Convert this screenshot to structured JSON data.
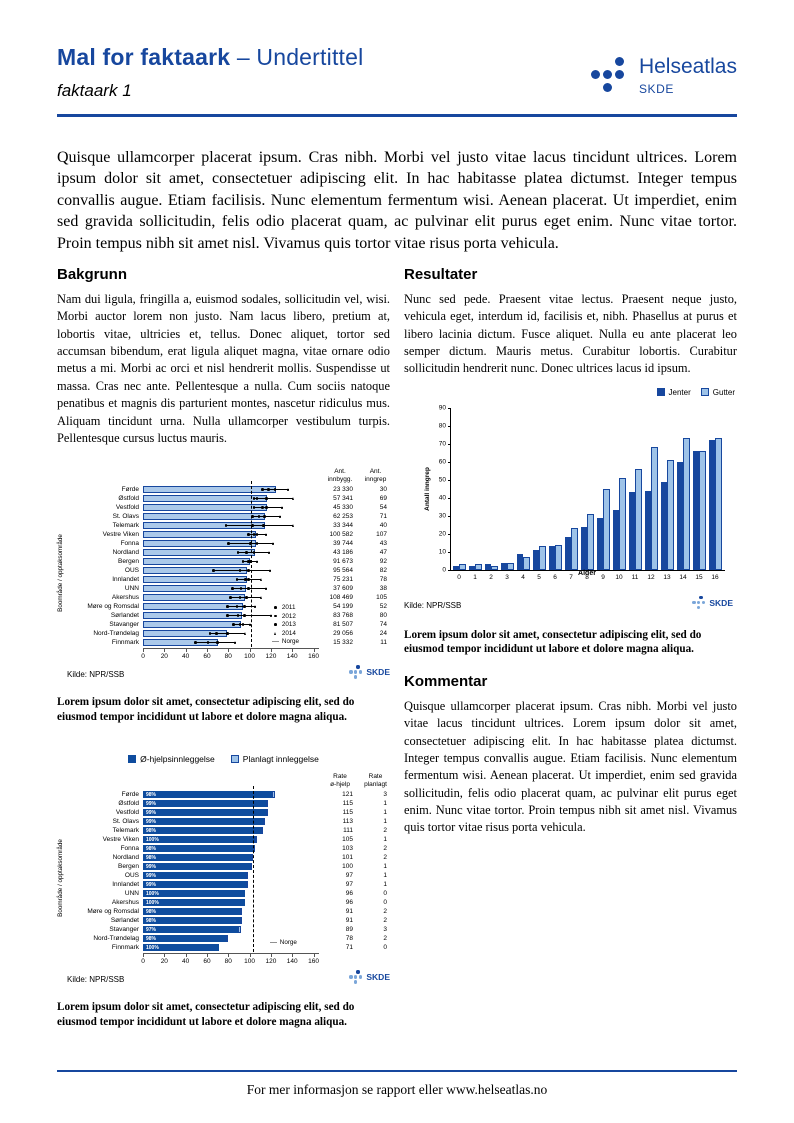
{
  "header": {
    "title_bold": "Mal for faktaark",
    "title_rest": "– Undertittel",
    "doc_label": "faktaark 1",
    "logo_name": "Helseatlas",
    "logo_org": "SKDE"
  },
  "brand": {
    "skde": "SKDE"
  },
  "colors": {
    "accent": "#17479e",
    "bar_light": "#abc9ea",
    "bar_dark": "#0e4c9e",
    "gutter_light": "#9ec3e8"
  },
  "intro": "Quisque ullamcorper placerat ipsum. Cras nibh. Morbi vel justo vitae lacus tincidunt ultrices. Lorem ipsum dolor sit amet, consectetuer adipiscing elit. In hac habitasse platea dictumst. Integer tempus convallis augue. Etiam facilisis. Nunc elementum fermentum wisi. Aenean placerat. Ut imperdiet, enim sed gravida sollicitudin, felis odio placerat quam, ac pulvinar elit purus eget enim. Nunc vitae tortor. Proin tempus nibh sit amet nisl. Vivamus quis tortor vitae risus porta vehicula.",
  "sections": {
    "bakgrunn": {
      "heading": "Bakgrunn",
      "body": "Nam dui ligula, fringilla a, euismod sodales, sollicitudin vel, wisi. Morbi auctor lorem non justo. Nam lacus libero, pretium at, lobortis vitae, ultricies et, tellus. Donec aliquet, tortor sed accumsan bibendum, erat ligula aliquet magna, vitae ornare odio metus a mi. Morbi ac orci et nisl hendrerit mollis. Suspendisse ut massa. Cras nec ante. Pellentesque a nulla. Cum sociis natoque penatibus et magnis dis parturient montes, nascetur ridiculus mus. Aliquam tincidunt urna. Nulla ullamcorper vestibulum turpis. Pellentesque cursus luctus mauris."
    },
    "resultater": {
      "heading": "Resultater",
      "body": "Nunc sed pede. Praesent vitae lectus. Praesent neque justo, vehicula eget, interdum id, facilisis et, nibh. Phasellus at purus et libero lacinia dictum. Fusce aliquet. Nulla eu ante placerat leo semper dictum. Mauris metus. Curabitur lobortis. Curabitur sollicitudin hendrerit nunc. Donec ultrices lacus id ipsum."
    },
    "kommentar": {
      "heading": "Kommentar",
      "body": "Quisque ullamcorper placerat ipsum. Cras nibh. Morbi vel justo vitae lacus tincidunt ultrices. Lorem ipsum dolor sit amet, consectetuer adipiscing elit. In hac habitasse platea dictumst. Integer tempus convallis augue. Etiam facilisis. Nunc elementum fermentum wisi. Aenean placerat. Ut imperdiet, enim sed gravida sollicitudin, felis odio placerat quam, ac pulvinar elit purus eget enim. Nunc vitae tortor. Proin tempus nibh sit amet nisl. Vivamus quis tortor vitae risus porta vehicula."
    }
  },
  "captions": {
    "chart1": "Lorem ipsum dolor sit amet, consectetur adipiscing elit, sed do eiusmod tempor incididunt ut labore et dolore magna aliqua.",
    "chart2": "Lorem ipsum dolor sit amet, consectetur adipiscing elit, sed do eiusmod tempor incididunt ut labore et dolore magna aliqua.",
    "chart3": "Lorem ipsum dolor sit amet, consectetur adipiscing elit, sed do eiusmod tempor incididunt ut labore et dolore magna aliqua."
  },
  "footer": {
    "text": "For mer informasjon se rapport eller www.helseatlas.no"
  },
  "chart_data": [
    {
      "id": "rate-per-boomrade",
      "type": "bar-horizontal",
      "ylabel": "Boområde / opptaksområde",
      "col_headers": [
        "Ant. innbygg.",
        "Ant. inngrep"
      ],
      "xlim": [
        0,
        160
      ],
      "xticks": [
        0,
        20,
        40,
        60,
        80,
        100,
        120,
        140,
        160
      ],
      "norge_line": 101,
      "legend": [
        {
          "label": "2011",
          "marker": "dot"
        },
        {
          "label": "2012",
          "marker": "dot"
        },
        {
          "label": "2013",
          "marker": "dot"
        },
        {
          "label": "2014",
          "marker": "triangle"
        },
        {
          "label": "Norge",
          "marker": "dash"
        }
      ],
      "source": "Kilde: NPR/SSB",
      "rows": [
        {
          "label": "Førde",
          "rate": 125,
          "markers": [
            112,
            118,
            124,
            137
          ],
          "innbygg": "23 330",
          "inngrep": "30"
        },
        {
          "label": "Østfold",
          "rate": 116,
          "markers": [
            104,
            107,
            116,
            141
          ],
          "innbygg": "57 341",
          "inngrep": "69"
        },
        {
          "label": "Vestfold",
          "rate": 116,
          "markers": [
            104,
            112,
            116,
            131
          ],
          "innbygg": "45 330",
          "inngrep": "54"
        },
        {
          "label": "St. Olavs",
          "rate": 114,
          "markers": [
            103,
            109,
            114,
            129
          ],
          "innbygg": "62 253",
          "inngrep": "71"
        },
        {
          "label": "Telemark",
          "rate": 114,
          "markers": [
            78,
            103,
            113,
            141
          ],
          "innbygg": "33 344",
          "inngrep": "40"
        },
        {
          "label": "Vestre Viken",
          "rate": 106,
          "markers": [
            99,
            104,
            107,
            116
          ],
          "innbygg": "100 582",
          "inngrep": "107"
        },
        {
          "label": "Fonna",
          "rate": 106,
          "markers": [
            80,
            101,
            107,
            123
          ],
          "innbygg": "39 744",
          "inngrep": "43"
        },
        {
          "label": "Nordland",
          "rate": 105,
          "markers": [
            89,
            97,
            104,
            119
          ],
          "innbygg": "43 186",
          "inngrep": "47"
        },
        {
          "label": "Bergen",
          "rate": 100,
          "markers": [
            94,
            99,
            101,
            108
          ],
          "innbygg": "91 673",
          "inngrep": "92"
        },
        {
          "label": "OUS",
          "rate": 98,
          "markers": [
            66,
            91,
            99,
            120
          ],
          "innbygg": "95 564",
          "inngrep": "82"
        },
        {
          "label": "Innlandet",
          "rate": 98,
          "markers": [
            88,
            96,
            99,
            111
          ],
          "innbygg": "75 231",
          "inngrep": "78"
        },
        {
          "label": "UNN",
          "rate": 97,
          "markers": [
            84,
            92,
            99,
            116
          ],
          "innbygg": "37 609",
          "inngrep": "38"
        },
        {
          "label": "Akershus",
          "rate": 96,
          "markers": [
            82,
            91,
            97,
            111
          ],
          "innbygg": "108 469",
          "inngrep": "105"
        },
        {
          "label": "Møre og Romsdal",
          "rate": 94,
          "markers": [
            79,
            88,
            95,
            106
          ],
          "innbygg": "54 199",
          "inngrep": "52"
        },
        {
          "label": "Sørlandet",
          "rate": 93,
          "markers": [
            79,
            89,
            95,
            121
          ],
          "innbygg": "83 768",
          "inngrep": "80"
        },
        {
          "label": "Stavanger",
          "rate": 92,
          "markers": [
            85,
            91,
            94,
            101
          ],
          "innbygg": "81 507",
          "inngrep": "74"
        },
        {
          "label": "Nord-Trøndelag",
          "rate": 79,
          "markers": [
            63,
            69,
            79,
            96
          ],
          "innbygg": "29 056",
          "inngrep": "24"
        },
        {
          "label": "Finnmark",
          "rate": 70,
          "markers": [
            49,
            61,
            70,
            87
          ],
          "innbygg": "15 332",
          "inngrep": "11"
        }
      ]
    },
    {
      "id": "inngrep-per-alder",
      "type": "bar",
      "xlabel": "Alder",
      "ylabel": "Antall inngrep",
      "ylim": [
        0,
        90
      ],
      "yticks": [
        0,
        10,
        20,
        30,
        40,
        50,
        60,
        70,
        80,
        90
      ],
      "categories": [
        "0",
        "1",
        "2",
        "3",
        "4",
        "5",
        "6",
        "7",
        "8",
        "9",
        "10",
        "11",
        "12",
        "13",
        "14",
        "15",
        "16"
      ],
      "legend_position": "top-right",
      "series": [
        {
          "name": "Jenter",
          "color": "#17479e",
          "values": [
            2,
            2,
            3,
            4,
            9,
            11,
            13,
            18,
            24,
            29,
            33,
            43,
            44,
            49,
            60,
            66,
            72
          ]
        },
        {
          "name": "Gutter",
          "color": "#9ec3e8",
          "values": [
            3,
            3,
            2,
            4,
            7,
            13,
            14,
            23,
            31,
            45,
            51,
            56,
            68,
            61,
            73,
            66,
            73
          ]
        }
      ],
      "source": "Kilde: NPR/SSB"
    },
    {
      "id": "ohjelp-vs-planlagt",
      "type": "bar-horizontal-stacked",
      "legend": [
        "Ø-hjelpsinnleggelse",
        "Planlagt innleggelse"
      ],
      "ylabel": "Boområde / opptaksområde",
      "col_headers": [
        "Rate ø-hjelp",
        "Rate planlagt"
      ],
      "xlim": [
        0,
        160
      ],
      "xticks": [
        0,
        20,
        40,
        60,
        80,
        100,
        120,
        140,
        160
      ],
      "norge_line": 103,
      "norge_label": "Norge",
      "source": "Kilde: NPR/SSB",
      "rows": [
        {
          "label": "Førde",
          "pct": "98%",
          "ohjelp": 121,
          "planlagt": 3
        },
        {
          "label": "Østfold",
          "pct": "99%",
          "ohjelp": 115,
          "planlagt": 1
        },
        {
          "label": "Vestfold",
          "pct": "99%",
          "ohjelp": 115,
          "planlagt": 1
        },
        {
          "label": "St. Olavs",
          "pct": "99%",
          "ohjelp": 113,
          "planlagt": 1
        },
        {
          "label": "Telemark",
          "pct": "98%",
          "ohjelp": 111,
          "planlagt": 2
        },
        {
          "label": "Vestre Viken",
          "pct": "100%",
          "ohjelp": 105,
          "planlagt": 1
        },
        {
          "label": "Fonna",
          "pct": "98%",
          "ohjelp": 103,
          "planlagt": 2
        },
        {
          "label": "Nordland",
          "pct": "98%",
          "ohjelp": 101,
          "planlagt": 2
        },
        {
          "label": "Bergen",
          "pct": "99%",
          "ohjelp": 100,
          "planlagt": 1
        },
        {
          "label": "OUS",
          "pct": "99%",
          "ohjelp": 97,
          "planlagt": 1
        },
        {
          "label": "Innlandet",
          "pct": "99%",
          "ohjelp": 97,
          "planlagt": 1
        },
        {
          "label": "UNN",
          "pct": "100%",
          "ohjelp": 96,
          "planlagt": 0
        },
        {
          "label": "Akershus",
          "pct": "100%",
          "ohjelp": 96,
          "planlagt": 0
        },
        {
          "label": "Møre og Romsdal",
          "pct": "98%",
          "ohjelp": 91,
          "planlagt": 2
        },
        {
          "label": "Sørlandet",
          "pct": "98%",
          "ohjelp": 91,
          "planlagt": 2
        },
        {
          "label": "Stavanger",
          "pct": "97%",
          "ohjelp": 89,
          "planlagt": 3
        },
        {
          "label": "Nord-Trøndelag",
          "pct": "98%",
          "ohjelp": 78,
          "planlagt": 2
        },
        {
          "label": "Finnmark",
          "pct": "100%",
          "ohjelp": 71,
          "planlagt": 0
        }
      ]
    }
  ]
}
